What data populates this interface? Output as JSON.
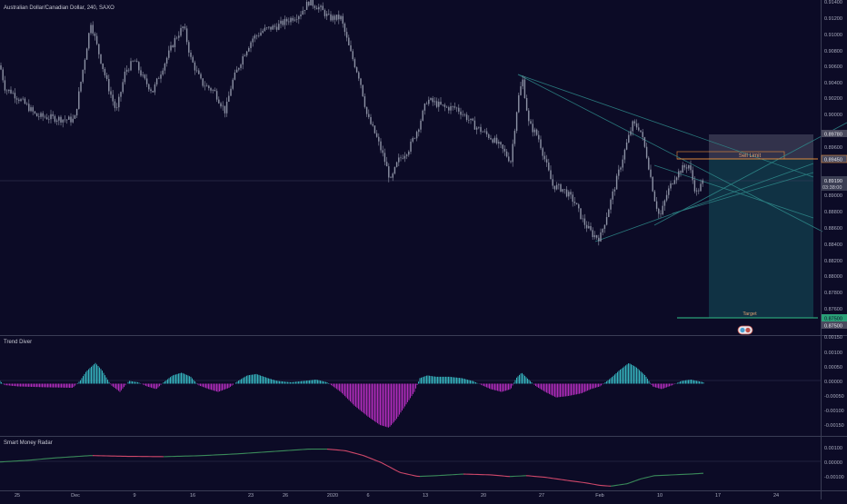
{
  "header": {
    "title": "Australian Dollar/Canadian Dollar, 240, SAXO"
  },
  "colors": {
    "background": "#0c0b26",
    "candle": "#8e93a6",
    "trendline": "#2f8c8c",
    "osc_positive": "#35b3bd",
    "osc_negative": "#b02cbb",
    "radar_up": "#3a8a5a",
    "radar_down": "#d0486a",
    "sell_zone": "#3a3a52",
    "target_zone": "#123a4a",
    "sell_line": "#e08a3c",
    "target_line": "#2aa078"
  },
  "price_axis": {
    "ticks": [
      "0.91400",
      "0.91200",
      "0.91000",
      "0.90800",
      "0.90600",
      "0.90400",
      "0.90200",
      "0.90000",
      "0.89800",
      "0.89600",
      "0.89400",
      "0.89200",
      "0.89000",
      "0.88800",
      "0.88600",
      "0.88400",
      "0.88200",
      "0.88000",
      "0.87800",
      "0.87600"
    ],
    "labels": {
      "current_price": "0.89190",
      "countdown": "03:38:00",
      "sell_price": "0.89450",
      "upper_price": "0.89780",
      "target_price": "0.87500",
      "target_price_2": "0.87500"
    }
  },
  "annotations": {
    "sell_limit": "Sell Limit",
    "target": "Target"
  },
  "x_axis": {
    "labels": [
      "25",
      "Dec",
      "9",
      "16",
      "23",
      "26",
      "2020",
      "6",
      "13",
      "20",
      "27",
      "Feb",
      "10",
      "17",
      "24"
    ]
  },
  "panels": {
    "trend_diver": {
      "title": "Trend Diver",
      "ticks": [
        "0.00150",
        "0.00100",
        "0.00050",
        "0.00000",
        "-0.00050",
        "-0.00100",
        "-0.00150"
      ]
    },
    "smart_money": {
      "title": "Smart Money Radar",
      "ticks": [
        "0.00100",
        "0.00000",
        "-0.00100"
      ]
    }
  },
  "chart_data": [
    {
      "type": "candlestick",
      "title": "Australian Dollar/Canadian Dollar, 240, SAXO",
      "xlabel": "",
      "ylabel": "",
      "ylim": [
        0.8745,
        0.9142
      ],
      "x_ticks": [
        "25",
        "Dec",
        "9",
        "16",
        "23",
        "26",
        "2020",
        "6",
        "13",
        "20",
        "27",
        "Feb",
        "10",
        "17",
        "24"
      ],
      "close_path": [
        [
          0,
          0.9062
        ],
        [
          6,
          0.9032
        ],
        [
          12,
          0.903
        ],
        [
          18,
          0.9024
        ],
        [
          30,
          0.9012
        ],
        [
          40,
          0.9
        ],
        [
          55,
          0.8998
        ],
        [
          70,
          0.8996
        ],
        [
          82,
          0.8995
        ],
        [
          92,
          0.9062
        ],
        [
          100,
          0.9115
        ],
        [
          108,
          0.908
        ],
        [
          118,
          0.904
        ],
        [
          128,
          0.9005
        ],
        [
          138,
          0.9055
        ],
        [
          148,
          0.9068
        ],
        [
          158,
          0.9045
        ],
        [
          168,
          0.903
        ],
        [
          180,
          0.9062
        ],
        [
          193,
          0.9095
        ],
        [
          202,
          0.911
        ],
        [
          210,
          0.907
        ],
        [
          222,
          0.904
        ],
        [
          236,
          0.903
        ],
        [
          248,
          0.9005
        ],
        [
          255,
          0.904
        ],
        [
          268,
          0.9075
        ],
        [
          278,
          0.9095
        ],
        [
          290,
          0.9105
        ],
        [
          305,
          0.911
        ],
        [
          318,
          0.9118
        ],
        [
          330,
          0.9125
        ],
        [
          340,
          0.914
        ],
        [
          352,
          0.9132
        ],
        [
          362,
          0.912
        ],
        [
          375,
          0.912
        ],
        [
          385,
          0.908
        ],
        [
          396,
          0.9045
        ],
        [
          404,
          0.9
        ],
        [
          414,
          0.8975
        ],
        [
          422,
          0.895
        ],
        [
          430,
          0.892
        ],
        [
          438,
          0.8945
        ],
        [
          450,
          0.896
        ],
        [
          460,
          0.8985
        ],
        [
          470,
          0.902
        ],
        [
          480,
          0.9015
        ],
        [
          490,
          0.901
        ],
        [
          502,
          0.901
        ],
        [
          512,
          0.9
        ],
        [
          522,
          0.8988
        ],
        [
          532,
          0.898
        ],
        [
          542,
          0.8972
        ],
        [
          552,
          0.896
        ],
        [
          562,
          0.8945
        ],
        [
          570,
          0.902
        ],
        [
          575,
          0.9045
        ],
        [
          582,
          0.899
        ],
        [
          592,
          0.8975
        ],
        [
          600,
          0.8945
        ],
        [
          608,
          0.8915
        ],
        [
          620,
          0.891
        ],
        [
          632,
          0.8895
        ],
        [
          642,
          0.887
        ],
        [
          652,
          0.8855
        ],
        [
          660,
          0.885
        ],
        [
          668,
          0.888
        ],
        [
          678,
          0.892
        ],
        [
          688,
          0.896
        ],
        [
          696,
          0.899
        ],
        [
          704,
          0.8985
        ],
        [
          712,
          0.895
        ],
        [
          720,
          0.89
        ],
        [
          726,
          0.8875
        ],
        [
          734,
          0.8905
        ],
        [
          742,
          0.8925
        ],
        [
          750,
          0.8935
        ],
        [
          758,
          0.894
        ],
        [
          766,
          0.8905
        ],
        [
          774,
          0.892
        ]
      ]
    },
    {
      "type": "bar",
      "title": "Trend Diver",
      "ylim": [
        -0.0018,
        0.0017
      ],
      "values": [
        [
          0,
          0.0001
        ],
        [
          5,
          -5e-05
        ],
        [
          20,
          -0.0001
        ],
        [
          50,
          -0.00013
        ],
        [
          80,
          -0.00015
        ],
        [
          88,
          0.0001
        ],
        [
          95,
          0.00045
        ],
        [
          105,
          0.00075
        ],
        [
          112,
          0.0005
        ],
        [
          122,
          -5e-05
        ],
        [
          132,
          -0.0003
        ],
        [
          142,
          0.0001
        ],
        [
          152,
          5e-05
        ],
        [
          162,
          -0.0001
        ],
        [
          172,
          -0.0002
        ],
        [
          180,
          5e-05
        ],
        [
          190,
          0.0003
        ],
        [
          200,
          0.0004
        ],
        [
          210,
          0.00025
        ],
        [
          218,
          -5e-05
        ],
        [
          230,
          -0.0002
        ],
        [
          240,
          -0.0003
        ],
        [
          252,
          -0.00015
        ],
        [
          262,
          0.0001
        ],
        [
          272,
          0.0003
        ],
        [
          282,
          0.00035
        ],
        [
          295,
          0.0002
        ],
        [
          305,
          0.0001
        ],
        [
          320,
          5e-05
        ],
        [
          335,
          0.0001
        ],
        [
          348,
          0.00015
        ],
        [
          360,
          5e-05
        ],
        [
          375,
          -0.0003
        ],
        [
          390,
          -0.0008
        ],
        [
          405,
          -0.0012
        ],
        [
          418,
          -0.0015
        ],
        [
          428,
          -0.0016
        ],
        [
          436,
          -0.0013
        ],
        [
          446,
          -0.0008
        ],
        [
          456,
          -0.0003
        ],
        [
          462,
          0.0002
        ],
        [
          470,
          0.0003
        ],
        [
          480,
          0.00025
        ],
        [
          495,
          0.00025
        ],
        [
          508,
          0.0002
        ],
        [
          520,
          0.0001
        ],
        [
          530,
          -5e-05
        ],
        [
          540,
          -0.0002
        ],
        [
          552,
          -0.0003
        ],
        [
          562,
          -0.0002
        ],
        [
          568,
          0.0002
        ],
        [
          574,
          0.0004
        ],
        [
          580,
          0.0002
        ],
        [
          590,
          -0.0001
        ],
        [
          600,
          -0.0003
        ],
        [
          612,
          -0.0005
        ],
        [
          625,
          -0.00045
        ],
        [
          640,
          -0.00035
        ],
        [
          650,
          -0.0002
        ],
        [
          660,
          -0.0001
        ],
        [
          672,
          0.0002
        ],
        [
          682,
          0.0005
        ],
        [
          692,
          0.00075
        ],
        [
          700,
          0.0006
        ],
        [
          710,
          0.0003
        ],
        [
          718,
          -0.0001
        ],
        [
          728,
          -0.0002
        ],
        [
          740,
          -5e-05
        ],
        [
          750,
          0.0001
        ],
        [
          760,
          0.00015
        ],
        [
          774,
          5e-05
        ]
      ]
    },
    {
      "type": "line",
      "title": "Smart Money Radar",
      "ylim": [
        -0.0016,
        0.0015
      ],
      "values": [
        [
          0,
          5e-05
        ],
        [
          30,
          0.00015
        ],
        [
          60,
          0.0003
        ],
        [
          100,
          0.00045
        ],
        [
          140,
          0.0004
        ],
        [
          180,
          0.00038
        ],
        [
          220,
          0.00044
        ],
        [
          260,
          0.00055
        ],
        [
          300,
          0.0007
        ],
        [
          340,
          0.00085
        ],
        [
          360,
          0.00085
        ],
        [
          380,
          0.00075
        ],
        [
          400,
          0.00045
        ],
        [
          420,
          0.0
        ],
        [
          440,
          -0.0006
        ],
        [
          460,
          -0.00085
        ],
        [
          480,
          -0.0008
        ],
        [
          510,
          -0.0007
        ],
        [
          540,
          -0.00075
        ],
        [
          560,
          -0.00085
        ],
        [
          580,
          -0.0008
        ],
        [
          600,
          -0.0009
        ],
        [
          625,
          -0.0011
        ],
        [
          645,
          -0.00125
        ],
        [
          660,
          -0.0014
        ],
        [
          672,
          -0.00145
        ],
        [
          690,
          -0.0013
        ],
        [
          705,
          -0.001
        ],
        [
          720,
          -0.0008
        ],
        [
          740,
          -0.00075
        ],
        [
          760,
          -0.0007
        ],
        [
          774,
          -0.00065
        ]
      ]
    }
  ]
}
